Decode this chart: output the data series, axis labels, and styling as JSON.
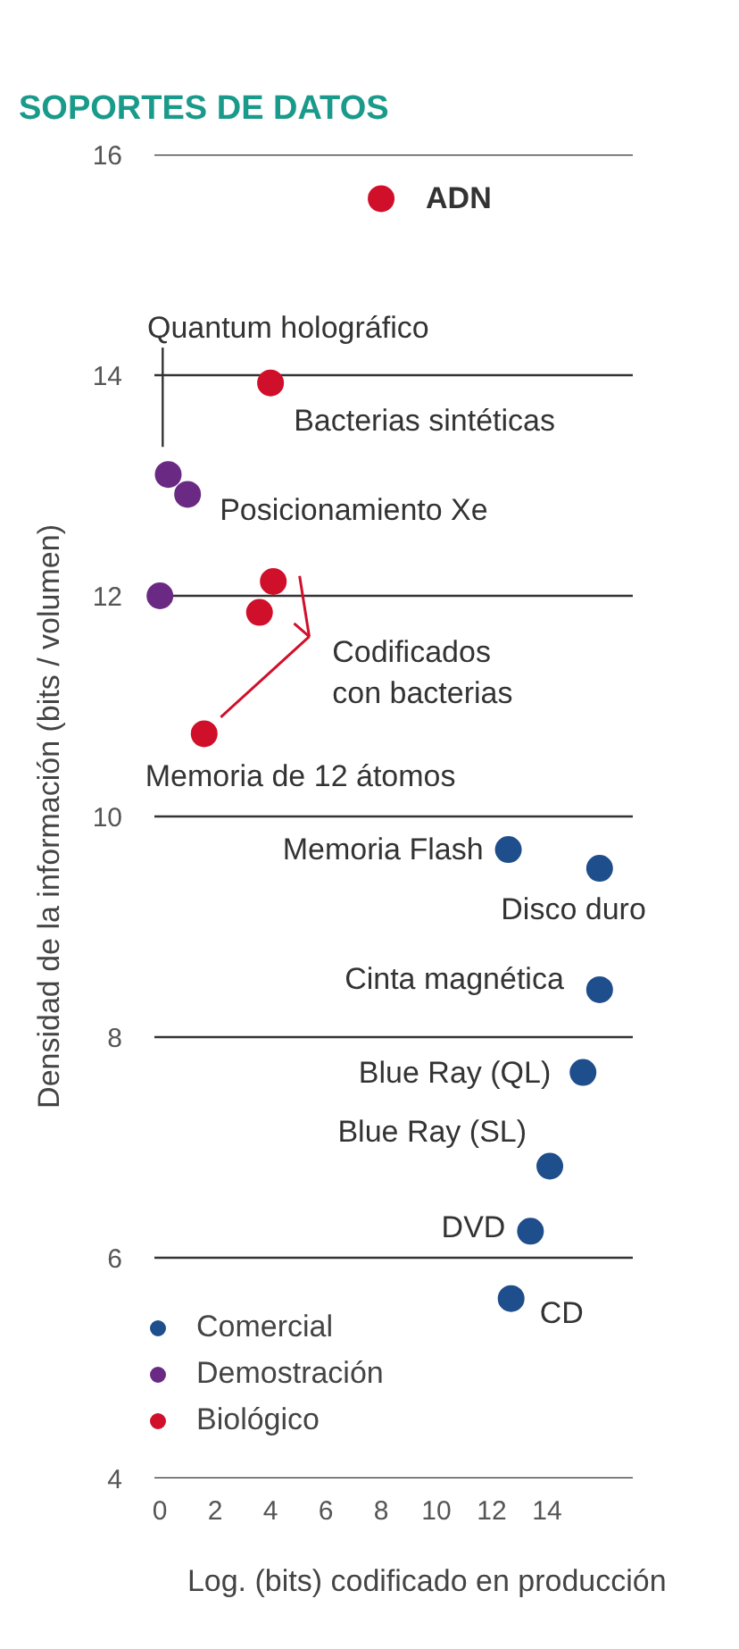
{
  "chart_data": {
    "type": "scatter",
    "title": "SOPORTES DE DATOS",
    "xlabel": "Log.  (bits) codificado en producción",
    "ylabel": "Densidad de la información (bits / volumen)",
    "series": [
      {
        "name": "Comercial",
        "color": "#1f4e8c",
        "x": [
          12.6,
          15.9,
          15.9,
          15.3,
          14.1,
          13.4,
          12.7
        ],
        "values": [
          9.7,
          9.53,
          8.43,
          7.68,
          6.83,
          6.24,
          5.63
        ]
      },
      {
        "name": "Demostración",
        "color": "#6a2a84",
        "x": [
          0.3,
          1.0,
          0.0
        ],
        "values": [
          13.1,
          12.92,
          12.0
        ]
      },
      {
        "name": "Biológico",
        "color": "#d0102a",
        "x": [
          8.0,
          4.0,
          4.1,
          3.6,
          1.6
        ],
        "values": [
          15.6,
          13.93,
          12.13,
          11.85,
          10.75
        ]
      }
    ],
    "annotations": [
      {
        "text": "ADN",
        "x": 8.0,
        "y": 15.6
      },
      "Quantum holográfico",
      {
        "text": "Bacterias sintéticas",
        "x": 4.0,
        "y": 13.93
      },
      {
        "text": "Posicionamiento Xe",
        "x": 1.0,
        "y": 12.92
      },
      {
        "text": "Codificados\ncon bacterias",
        "x": 4.1,
        "y": 12.13
      },
      {
        "text": "Memoria de 12 átomos",
        "x": 1.6,
        "y": 10.75
      },
      {
        "text": "Memoria Flash",
        "x": 12.6,
        "y": 9.7
      },
      {
        "text": "Disco duro",
        "x": 15.9,
        "y": 9.53
      },
      {
        "text": "Cinta magnética",
        "x": 15.9,
        "y": 8.43
      },
      {
        "text": "Blue Ray (QL)",
        "x": 15.3,
        "y": 7.68
      },
      {
        "text": "Blue Ray (SL)",
        "x": 14.1,
        "y": 6.83
      },
      {
        "text": "DVD",
        "x": 13.4,
        "y": 6.24
      },
      {
        "text": "CD",
        "x": 12.7,
        "y": 5.63
      }
    ],
    "xlim": [
      -0.2,
      17.1
    ],
    "ylim": [
      4,
      16
    ],
    "xticks": [
      0,
      2,
      4,
      6,
      8,
      10,
      12,
      14
    ],
    "yticks": [
      4,
      6,
      8,
      10,
      12,
      14,
      16
    ],
    "grid": "y",
    "legend": "bottom left",
    "marker": "circle"
  }
}
